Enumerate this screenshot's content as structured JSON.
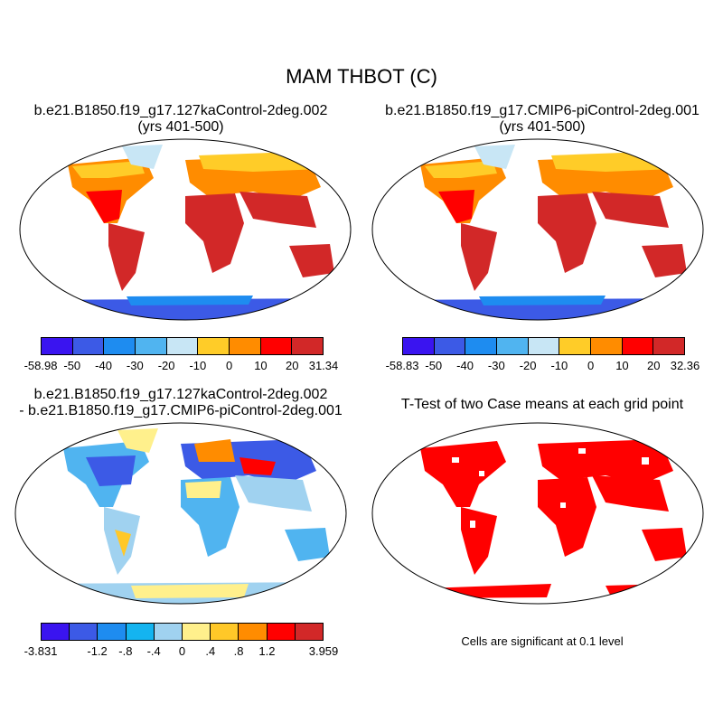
{
  "title": "MAM THBOT (C)",
  "panels": {
    "case1": {
      "title_line1": "b.e21.B1850.f19_g17.127kaControl-2deg.002",
      "title_line2": "(yrs 401-500)",
      "colorbar": {
        "colors": [
          "#3a14f0",
          "#3c5ae6",
          "#1e8cf0",
          "#50b4f0",
          "#c8e6f5",
          "#ffcc28",
          "#ff8c00",
          "#ff0000",
          "#d22828"
        ],
        "labels": [
          "-58.98",
          "-50",
          "-40",
          "-30",
          "-20",
          "-10",
          "0",
          "10",
          "20",
          "31.34"
        ]
      }
    },
    "case2": {
      "title_line1": "b.e21.B1850.f19_g17.CMIP6-piControl-2deg.001",
      "title_line2": "(yrs 401-500)",
      "colorbar": {
        "colors": [
          "#3a14f0",
          "#3c5ae6",
          "#1e8cf0",
          "#50b4f0",
          "#c8e6f5",
          "#ffcc28",
          "#ff8c00",
          "#ff0000",
          "#d22828"
        ],
        "labels": [
          "-58.83",
          "-50",
          "-40",
          "-30",
          "-20",
          "-10",
          "0",
          "10",
          "20",
          "32.36"
        ]
      }
    },
    "diff": {
      "title_line1": "b.e21.B1850.f19_g17.127kaControl-2deg.002",
      "title_line2": "- b.e21.B1850.f19_g17.CMIP6-piControl-2deg.001",
      "colorbar": {
        "colors": [
          "#3a14f0",
          "#3c5ae6",
          "#1e8cf0",
          "#14b4f0",
          "#a0d2f0",
          "#fff08c",
          "#ffc828",
          "#ff8c00",
          "#ff0000",
          "#d22828"
        ],
        "labels": [
          "-3.831",
          "-1.2",
          "-.8",
          "-.4",
          "0",
          ".4",
          ".8",
          "1.2",
          "3.959"
        ]
      }
    },
    "ttest": {
      "title": "T-Test of two Case means at each grid point",
      "note": "Cells are significant at 0.1 level",
      "sig_color": "#ff0000"
    }
  }
}
